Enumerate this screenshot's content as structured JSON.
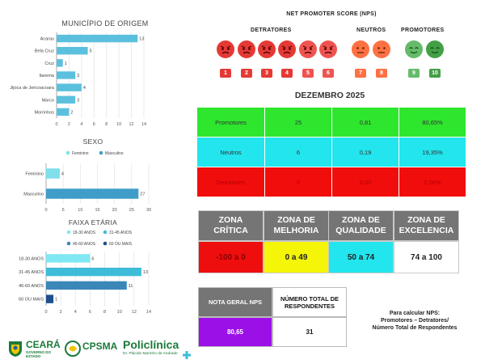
{
  "header": {
    "nps_title": "NET PROMOTER SCORE (NPS)",
    "detratores": "DETRATORES",
    "neutros": "NEUTROS",
    "promotores": "PROMOTORES",
    "month": "DEZEMBRO 2025"
  },
  "scale": [
    {
      "n": "1",
      "color": "#e53935"
    },
    {
      "n": "2",
      "color": "#e53935"
    },
    {
      "n": "3",
      "color": "#e53935"
    },
    {
      "n": "4",
      "color": "#e53935"
    },
    {
      "n": "5",
      "color": "#ef5350"
    },
    {
      "n": "6",
      "color": "#ef5350"
    },
    {
      "n": "7",
      "color": "#ff7043"
    },
    {
      "n": "8",
      "color": "#ff7043"
    },
    {
      "n": "9",
      "color": "#66bb6a"
    },
    {
      "n": "10",
      "color": "#43a047"
    }
  ],
  "table": {
    "rows": [
      {
        "label": "Promotores",
        "count": "25",
        "fraction": "0,81",
        "percent": "80,65%",
        "color": "#2ee62e"
      },
      {
        "label": "Neutros",
        "count": "6",
        "fraction": "0,19",
        "percent": "19,35%",
        "color": "#22e5ee"
      },
      {
        "label": "Detratores",
        "count": "0",
        "fraction": "0,00",
        "percent": "0,00%",
        "color": "#f20d0d"
      }
    ]
  },
  "zones": {
    "headers": [
      "ZONA\nCRÍTICA",
      "ZONA DE\nMELHORIA",
      "ZONA DE\nQUALIDADE",
      "ZONA DE\nEXCELENCIA"
    ],
    "values": [
      "-100 a 0",
      "0 a 49",
      "50 a 74",
      "74 a 100"
    ],
    "colors": [
      "#ee0e0e",
      "#f5f50a",
      "#22e5ee",
      "#ffffff"
    ]
  },
  "summary": {
    "nota_label": "NOTA GERAL NPS",
    "nota_value": "80,65",
    "total_label": "NÚMERO TOTAL DE RESPONDENTES",
    "total_value": "31",
    "formula": "Para calcular NPS:\nPromotores – Detratores/\nNúmero Total de Respondentes",
    "nota_color": "#9c10e8"
  },
  "logos": {
    "ceara": "CEARÁ",
    "ceara_sub": "GOVERNO DO ESTADO",
    "cpsma": "CPSMA",
    "policlinica": "Policlínica",
    "policlinica_sub": "Dr. Plácido Marinho de Andrade"
  },
  "chart_data": [
    {
      "type": "bar",
      "orientation": "horizontal",
      "title": "MUNICÍPIO DE ORIGEM",
      "categories": [
        "Acarau",
        "Bela Cruz",
        "Cruz",
        "Itarema",
        "Jijoca de Jericoacoara",
        "Marco",
        "Morrinhos"
      ],
      "values": [
        13,
        5,
        1,
        3,
        4,
        3,
        2
      ],
      "xlim": [
        0,
        14
      ],
      "xticks": [
        0,
        2,
        4,
        6,
        8,
        10,
        12,
        14
      ],
      "color": "#5bc0de",
      "grid": true
    },
    {
      "type": "bar",
      "orientation": "horizontal",
      "title": "SEXO",
      "categories": [
        "Feminino",
        "Masculino"
      ],
      "series": [
        {
          "name": "Feminino",
          "values": [
            4,
            null
          ],
          "color": "#7fdfea"
        },
        {
          "name": "Masculino",
          "values": [
            null,
            27
          ],
          "color": "#3f9ec9"
        }
      ],
      "xlim": [
        0,
        30
      ],
      "xticks": [
        0,
        5,
        10,
        15,
        20,
        25,
        30
      ],
      "legend": "top",
      "grid": true
    },
    {
      "type": "bar",
      "orientation": "horizontal",
      "title": "FAIXA ETÁRIA",
      "categories": [
        "18-30 ANOS",
        "31-45 ANOS",
        "46-60 ANOS",
        "60 OU MAIS"
      ],
      "series": [
        {
          "name": "18-30 ANOS",
          "values": [
            6,
            null,
            null,
            null
          ],
          "color": "#7fe8f2"
        },
        {
          "name": "31-45 ANOS",
          "values": [
            null,
            13,
            null,
            null
          ],
          "color": "#3fbcd8"
        },
        {
          "name": "46-60 ANOS",
          "values": [
            null,
            null,
            11,
            null
          ],
          "color": "#3a87b8"
        },
        {
          "name": "60 OU MAIS",
          "values": [
            null,
            null,
            null,
            1
          ],
          "color": "#1f4e8c"
        }
      ],
      "xlim": [
        0,
        14
      ],
      "xticks": [
        0,
        2,
        4,
        6,
        8,
        10,
        12,
        14
      ],
      "legend": "top",
      "grid": true
    }
  ]
}
